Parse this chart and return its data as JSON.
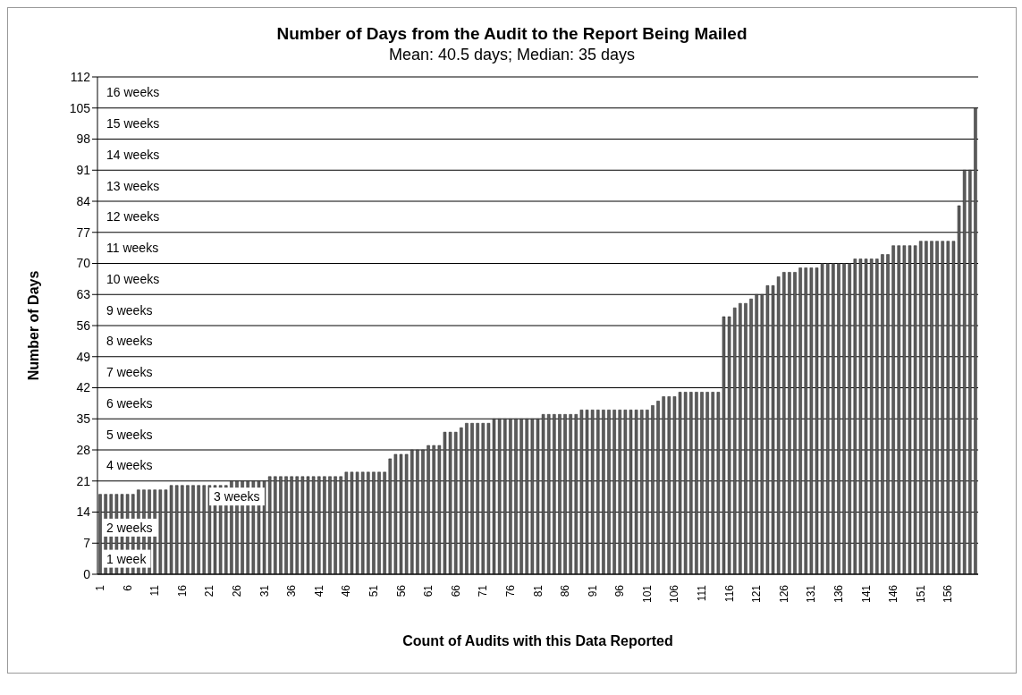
{
  "chart_data": {
    "type": "bar",
    "title": "Number of Days from the Audit to the Report Being Mailed",
    "subtitle": "Mean: 40.5 days;  Median: 35 days",
    "xlabel": "Count of Audits with this Data Reported",
    "ylabel": "Number of Days",
    "categories": [
      "1",
      null,
      null,
      null,
      null,
      "6",
      null,
      null,
      null,
      null,
      "11",
      null,
      null,
      null,
      null,
      "16",
      null,
      null,
      null,
      null,
      "21",
      null,
      null,
      null,
      null,
      "26",
      null,
      null,
      null,
      null,
      "31",
      null,
      null,
      null,
      null,
      "36",
      null,
      null,
      null,
      null,
      "41",
      null,
      null,
      null,
      null,
      "46",
      null,
      null,
      null,
      null,
      "51",
      null,
      null,
      null,
      null,
      "56",
      null,
      null,
      null,
      null,
      "61",
      null,
      null,
      null,
      null,
      "66",
      null,
      null,
      null,
      null,
      "71",
      null,
      null,
      null,
      null,
      "76",
      null,
      null,
      null,
      null,
      "81",
      null,
      null,
      null,
      null,
      "86",
      null,
      null,
      null,
      null,
      "91",
      null,
      null,
      null,
      null,
      "96",
      null,
      null,
      null,
      null,
      "101",
      null,
      null,
      null,
      null,
      "106",
      null,
      null,
      null,
      null,
      "111",
      null,
      null,
      null,
      null,
      "116",
      null,
      null,
      null,
      null,
      "121",
      null,
      null,
      null,
      null,
      "126",
      null,
      null,
      null,
      null,
      "131",
      null,
      null,
      null,
      null,
      "136",
      null,
      null,
      null,
      null,
      "141",
      null,
      null,
      null,
      null,
      "146",
      null,
      null,
      null,
      null,
      "151",
      null,
      null,
      null,
      null,
      "156",
      null,
      null,
      null,
      null,
      null
    ],
    "values": [
      18,
      18,
      18,
      18,
      18,
      18,
      18,
      19,
      19,
      19,
      19,
      19,
      19,
      20,
      20,
      20,
      20,
      20,
      20,
      20,
      20,
      20,
      20,
      20,
      21,
      21,
      21,
      21,
      21,
      21,
      21,
      22,
      22,
      22,
      22,
      22,
      22,
      22,
      22,
      22,
      22,
      22,
      22,
      22,
      22,
      23,
      23,
      23,
      23,
      23,
      23,
      23,
      23,
      26,
      27,
      27,
      27,
      28,
      28,
      28,
      29,
      29,
      29,
      32,
      32,
      32,
      33,
      34,
      34,
      34,
      34,
      34,
      35,
      35,
      35,
      35,
      35,
      35,
      35,
      35,
      35,
      36,
      36,
      36,
      36,
      36,
      36,
      36,
      37,
      37,
      37,
      37,
      37,
      37,
      37,
      37,
      37,
      37,
      37,
      37,
      37,
      38,
      39,
      40,
      40,
      40,
      41,
      41,
      41,
      41,
      41,
      41,
      41,
      41,
      58,
      58,
      60,
      61,
      61,
      62,
      63,
      63,
      65,
      65,
      67,
      68,
      68,
      68,
      69,
      69,
      69,
      69,
      70,
      70,
      70,
      70,
      70,
      70,
      71,
      71,
      71,
      71,
      71,
      72,
      72,
      74,
      74,
      74,
      74,
      74,
      75,
      75,
      75,
      75,
      75,
      75,
      75,
      83,
      91,
      91,
      105
    ],
    "color": "#5c5c5c",
    "ylim": [
      0,
      112
    ],
    "yticks": [
      0,
      7,
      14,
      21,
      28,
      35,
      42,
      49,
      56,
      63,
      70,
      77,
      84,
      91,
      98,
      105,
      112
    ],
    "grid": "y",
    "legend": false,
    "annotations": [
      "1 week",
      "2 weeks",
      "3 weeks",
      "4 weeks",
      "5 weeks",
      "6 weeks",
      "7 weeks",
      "8 weeks",
      "9 weeks",
      "10 weeks",
      "11 weeks",
      "12 weeks",
      "13 weeks",
      "14 weeks",
      "15 weeks",
      "16 weeks"
    ]
  }
}
